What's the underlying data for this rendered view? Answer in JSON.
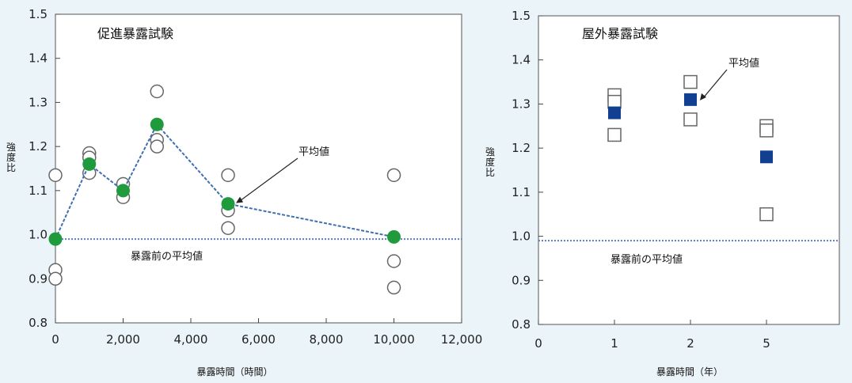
{
  "chart_data": [
    {
      "type": "scatter",
      "title": "促進暴露試験",
      "xlabel": "暴露時間（時間）",
      "ylabel": "強度比",
      "xlim": [
        0,
        12000
      ],
      "ylim": [
        0.8,
        1.5
      ],
      "x_ticks": [
        "0",
        "2,000",
        "4,000",
        "6,000",
        "8,000",
        "10,000",
        "12,000"
      ],
      "x_tick_values": [
        0,
        2000,
        4000,
        6000,
        8000,
        10000,
        12000
      ],
      "y_ticks": [
        "0.8",
        "0.9",
        "1.0",
        "1.1",
        "1.2",
        "1.3",
        "1.4",
        "1.5"
      ],
      "y_tick_values": [
        0.8,
        0.9,
        1.0,
        1.1,
        1.2,
        1.3,
        1.4,
        1.5
      ],
      "baseline": {
        "y": 0.99,
        "label": "暴露前の平均値"
      },
      "annotation": {
        "text": "平均値",
        "x": 5100,
        "y": 1.07
      },
      "series": [
        {
          "marker": "open-circle",
          "points": [
            {
              "x": 0,
              "y": 1.135
            },
            {
              "x": 0,
              "y": 0.92
            },
            {
              "x": 0,
              "y": 0.9
            },
            {
              "x": 1000,
              "y": 1.185
            },
            {
              "x": 1000,
              "y": 1.175
            },
            {
              "x": 1000,
              "y": 1.14
            },
            {
              "x": 2000,
              "y": 1.115
            },
            {
              "x": 2000,
              "y": 1.085
            },
            {
              "x": 3000,
              "y": 1.325
            },
            {
              "x": 3000,
              "y": 1.215
            },
            {
              "x": 3000,
              "y": 1.2
            },
            {
              "x": 5100,
              "y": 1.135
            },
            {
              "x": 5100,
              "y": 1.055
            },
            {
              "x": 5100,
              "y": 1.015
            },
            {
              "x": 10000,
              "y": 1.135
            },
            {
              "x": 10000,
              "y": 0.94
            },
            {
              "x": 10000,
              "y": 0.88
            }
          ]
        },
        {
          "name": "平均値",
          "marker": "filled-circle",
          "line": true,
          "points": [
            {
              "x": 0,
              "y": 0.99
            },
            {
              "x": 1000,
              "y": 1.16
            },
            {
              "x": 2000,
              "y": 1.1
            },
            {
              "x": 3000,
              "y": 1.25
            },
            {
              "x": 5100,
              "y": 1.07
            },
            {
              "x": 10000,
              "y": 0.995
            }
          ]
        }
      ]
    },
    {
      "type": "scatter",
      "title": "屋外暴露試験",
      "xlabel": "暴露時間（年）",
      "ylabel": "強度比",
      "x_ticks": [
        "0",
        "1",
        "2",
        "5"
      ],
      "y_ticks": [
        "0.8",
        "0.9",
        "1.0",
        "1.1",
        "1.2",
        "1.3",
        "1.4",
        "1.5"
      ],
      "y_tick_values": [
        0.8,
        0.9,
        1.0,
        1.1,
        1.2,
        1.3,
        1.4,
        1.5
      ],
      "ylim": [
        0.8,
        1.5
      ],
      "baseline": {
        "y": 0.99,
        "label": "暴露前の平均値"
      },
      "annotation": {
        "text": "平均値",
        "x": "2",
        "y": 1.31
      },
      "series": [
        {
          "marker": "open-square",
          "points": [
            {
              "x": "1",
              "y": 1.32
            },
            {
              "x": "1",
              "y": 1.305
            },
            {
              "x": "1",
              "y": 1.23
            },
            {
              "x": "2",
              "y": 1.35
            },
            {
              "x": "2",
              "y": 1.265
            },
            {
              "x": "5",
              "y": 1.25
            },
            {
              "x": "5",
              "y": 1.24
            },
            {
              "x": "5",
              "y": 1.05
            }
          ]
        },
        {
          "name": "平均値",
          "marker": "filled-square",
          "points": [
            {
              "x": "1",
              "y": 1.28
            },
            {
              "x": "2",
              "y": 1.31
            },
            {
              "x": "5",
              "y": 1.18
            }
          ]
        }
      ]
    }
  ],
  "colors": {
    "background": "#ebf4f8",
    "plot_bg": "#ffffff",
    "mean_green": "#1f9a3c",
    "mean_blue": "#123f8f",
    "line_blue": "#3f6fb0",
    "baseline": "#5a7fc2"
  }
}
